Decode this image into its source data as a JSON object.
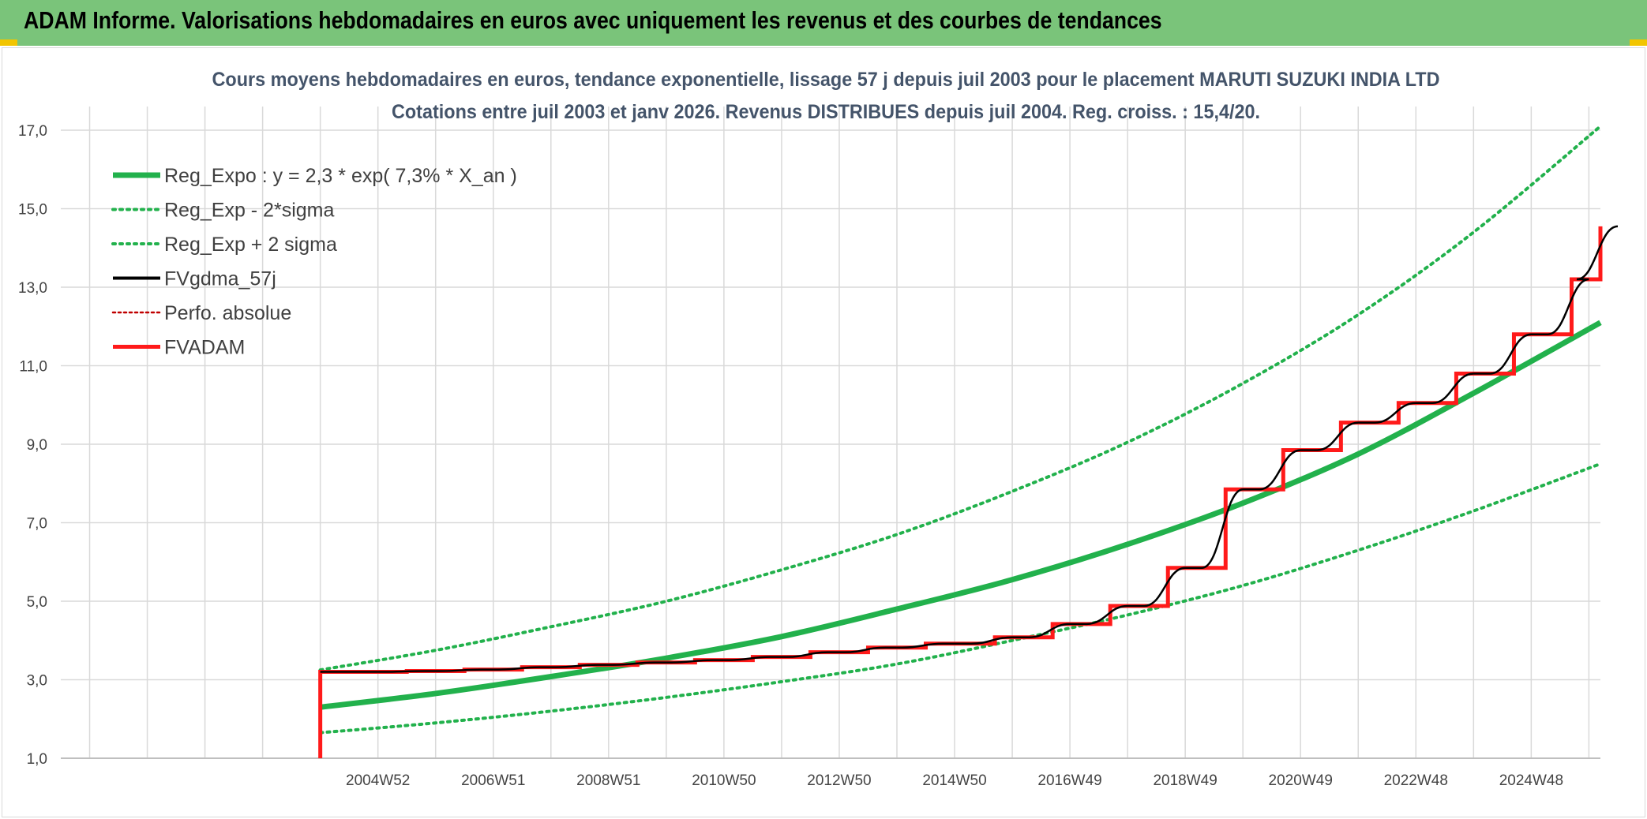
{
  "page": {
    "banner_title": "ADAM Informe. Valorisations hebdomadaires en euros avec uniquement les revenus et des courbes de tendances"
  },
  "colors": {
    "banner": "#7ac47a",
    "reg_expo": "#22b14c",
    "fvgdma": "#000000",
    "fvadam": "#ff1a1a",
    "perfo": "#c00000",
    "grid": "#d9d9d9"
  },
  "chart_data": {
    "type": "line",
    "title": "Cours moyens hebdomadaires en euros, tendance exponentielle, lissage 57 j depuis juil 2003 pour le placement MARUTI SUZUKI INDIA LTD",
    "subtitle": "Cotations entre juil 2003 et janv 2026. Revenus DISTRIBUES depuis juil 2004. Reg. croiss. : 15,4/20.",
    "xlim": [
      1999.5,
      2026.2
    ],
    "ylim": [
      1.0,
      17.0
    ],
    "y_ticks": [
      "1,0",
      "3,0",
      "5,0",
      "7,0",
      "9,0",
      "11,0",
      "13,0",
      "15,0",
      "17,0"
    ],
    "x_ticks": [
      {
        "label": "2004W52",
        "x": 2005.0
      },
      {
        "label": "2006W51",
        "x": 2007.0
      },
      {
        "label": "2008W51",
        "x": 2009.0
      },
      {
        "label": "2010W50",
        "x": 2011.0
      },
      {
        "label": "2012W50",
        "x": 2013.0
      },
      {
        "label": "2014W50",
        "x": 2015.0
      },
      {
        "label": "2016W49",
        "x": 2017.0
      },
      {
        "label": "2018W49",
        "x": 2019.0
      },
      {
        "label": "2020W49",
        "x": 2021.0
      },
      {
        "label": "2022W48",
        "x": 2023.0
      },
      {
        "label": "2024W48",
        "x": 2025.0
      }
    ],
    "legend_position": "top-left",
    "grid": true,
    "series": [
      {
        "name": "Reg_Expo : y = 2,3 * exp( 7,3% *  X_an )",
        "style": "solid-thick",
        "x": [
          2004.0,
          2006.0,
          2008.0,
          2010.0,
          2012.0,
          2014.0,
          2016.0,
          2018.0,
          2020.0,
          2022.0,
          2024.0,
          2026.2
        ],
        "y": [
          2.3,
          2.65,
          3.08,
          3.55,
          4.1,
          4.8,
          5.55,
          6.45,
          7.5,
          8.75,
          10.3,
          12.1
        ]
      },
      {
        "name": "Reg_Exp - 2*sigma",
        "style": "dotted",
        "x": [
          2004.0,
          2006.0,
          2008.0,
          2010.0,
          2012.0,
          2014.0,
          2016.0,
          2018.0,
          2020.0,
          2022.0,
          2024.0,
          2026.2
        ],
        "y": [
          1.65,
          1.9,
          2.2,
          2.55,
          2.95,
          3.4,
          4.0,
          4.65,
          5.4,
          6.3,
          7.3,
          8.5
        ]
      },
      {
        "name": "Reg_Exp + 2 sigma",
        "style": "dotted",
        "x": [
          2004.0,
          2006.0,
          2008.0,
          2010.0,
          2012.0,
          2014.0,
          2016.0,
          2018.0,
          2020.0,
          2022.0,
          2024.0,
          2026.2
        ],
        "y": [
          3.25,
          3.75,
          4.35,
          5.0,
          5.8,
          6.7,
          7.8,
          9.05,
          10.55,
          12.3,
          14.4,
          17.1
        ]
      },
      {
        "name": "FVgdma_57j",
        "style": "smooth-steps",
        "x": [
          2004.0,
          2005.5,
          2006.5,
          2007.5,
          2008.5,
          2009.5,
          2010.5,
          2011.5,
          2012.5,
          2013.5,
          2014.5,
          2015.7,
          2016.7,
          2017.7,
          2018.7,
          2019.7,
          2020.7,
          2021.7,
          2022.7,
          2023.7,
          2024.7,
          2025.7,
          2026.2
        ],
        "y": [
          3.2,
          3.22,
          3.26,
          3.32,
          3.38,
          3.44,
          3.5,
          3.58,
          3.7,
          3.82,
          3.92,
          4.08,
          4.42,
          4.88,
          5.85,
          7.85,
          8.85,
          9.55,
          10.05,
          10.8,
          11.8,
          13.2,
          14.55
        ]
      },
      {
        "name": "Perfo. absolue",
        "style": "dotted",
        "x": [],
        "y": []
      },
      {
        "name": "FVADAM",
        "style": "steps",
        "x": [
          2004.0,
          2005.5,
          2006.5,
          2007.5,
          2008.5,
          2009.5,
          2010.5,
          2011.5,
          2012.5,
          2013.5,
          2014.5,
          2015.7,
          2016.7,
          2017.7,
          2018.7,
          2019.7,
          2020.7,
          2021.7,
          2022.7,
          2023.7,
          2024.7,
          2025.7,
          2026.2
        ],
        "y": [
          3.2,
          3.22,
          3.26,
          3.32,
          3.38,
          3.44,
          3.5,
          3.58,
          3.7,
          3.82,
          3.92,
          4.08,
          4.42,
          4.88,
          5.85,
          7.85,
          8.85,
          9.55,
          10.05,
          10.8,
          11.8,
          13.2,
          14.55
        ]
      }
    ]
  }
}
